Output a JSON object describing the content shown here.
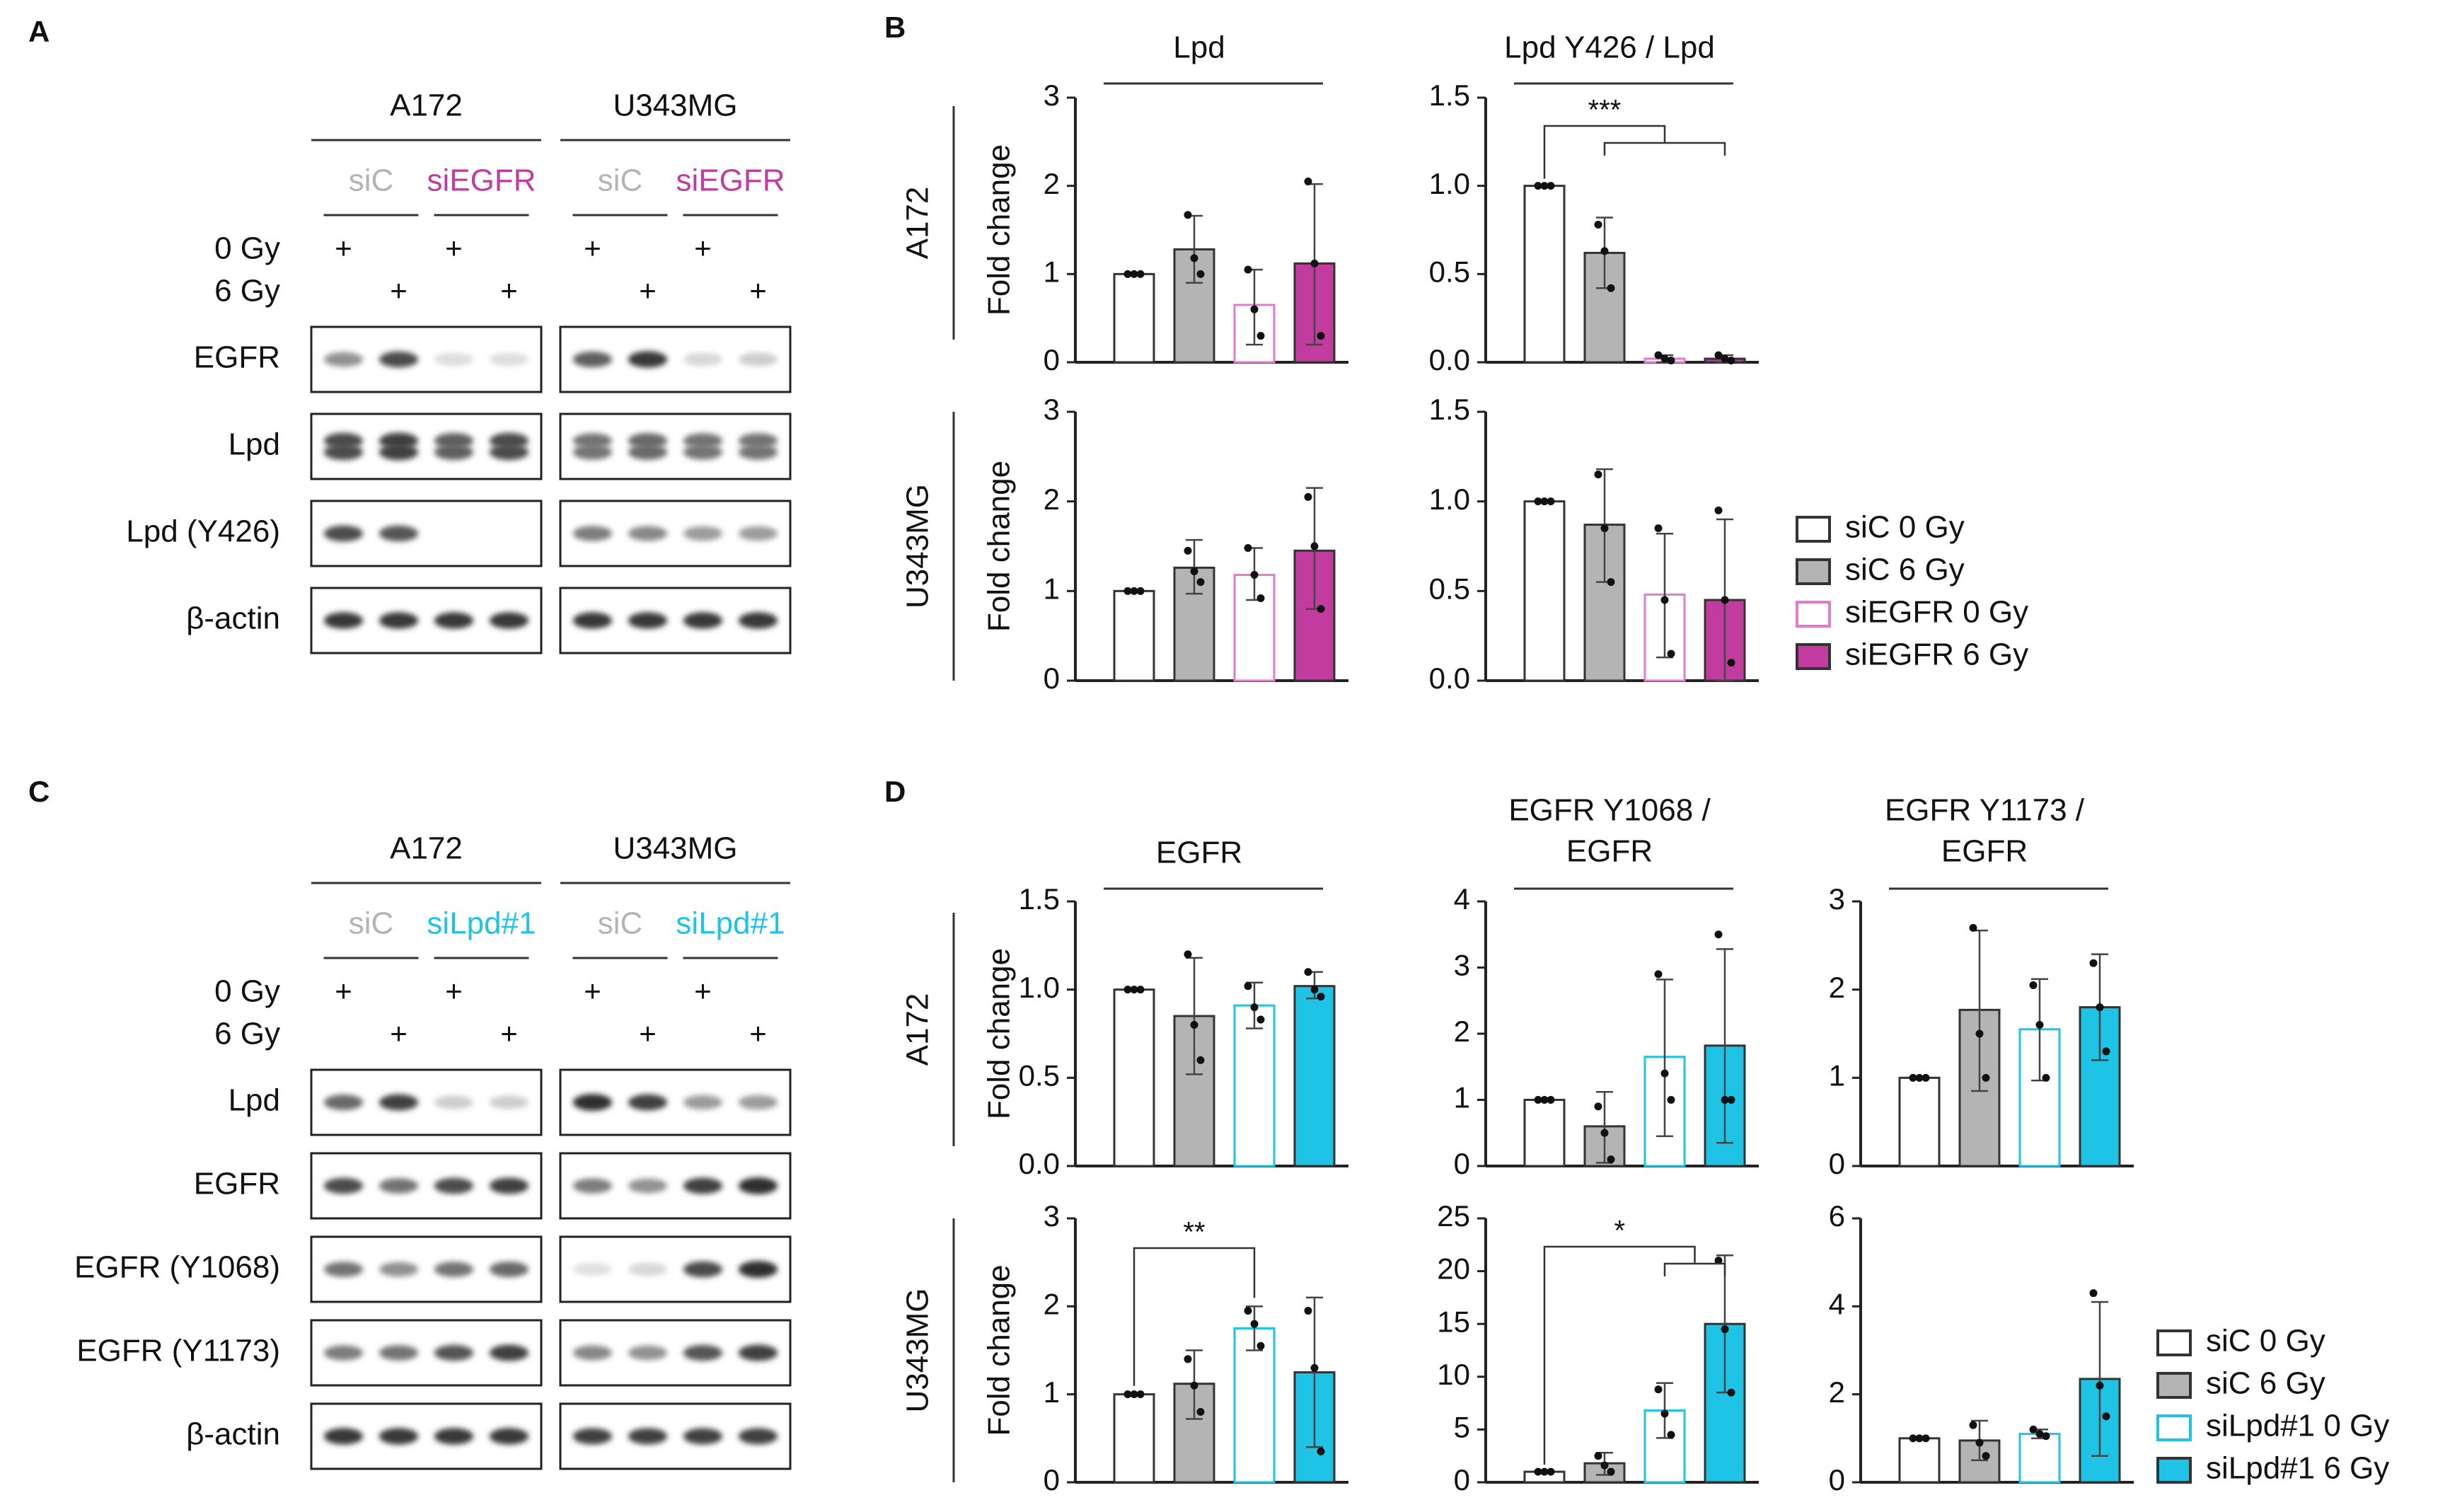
{
  "panels": {
    "A": {
      "letter": "A",
      "cell_lines": [
        "A172",
        "U343MG"
      ],
      "groups": [
        {
          "label": "siC",
          "color": "#b4b4b4"
        },
        {
          "label": "siEGFR",
          "color": "#c23ca0"
        }
      ],
      "dose_labels": [
        "0 Gy",
        "6 Gy"
      ],
      "plus": "+",
      "rows": [
        {
          "label": "EGFR",
          "A172": [
            0.45,
            0.8,
            0.07,
            0.07
          ],
          "U343MG": [
            0.7,
            0.9,
            0.1,
            0.15
          ]
        },
        {
          "label": "Lpd",
          "A172": [
            0.8,
            0.85,
            0.7,
            0.8
          ],
          "U343MG": [
            0.6,
            0.65,
            0.6,
            0.6
          ],
          "double": true
        },
        {
          "label": "Lpd (Y426)",
          "A172": [
            0.8,
            0.75,
            0.0,
            0.0
          ],
          "U343MG": [
            0.55,
            0.5,
            0.4,
            0.4
          ]
        },
        {
          "label": "β-actin",
          "A172": [
            0.9,
            0.9,
            0.9,
            0.9
          ],
          "U343MG": [
            0.9,
            0.9,
            0.9,
            0.9
          ]
        }
      ]
    },
    "C": {
      "letter": "C",
      "cell_lines": [
        "A172",
        "U343MG"
      ],
      "groups": [
        {
          "label": "siC",
          "color": "#b4b4b4"
        },
        {
          "label": "siLpd#1",
          "color": "#1ec3e6"
        }
      ],
      "dose_labels": [
        "0 Gy",
        "6 Gy"
      ],
      "plus": "+",
      "rows": [
        {
          "label": "Lpd",
          "A172": [
            0.65,
            0.85,
            0.15,
            0.15
          ],
          "U343MG": [
            0.95,
            0.85,
            0.4,
            0.4
          ]
        },
        {
          "label": "EGFR",
          "A172": [
            0.8,
            0.6,
            0.8,
            0.85
          ],
          "U343MG": [
            0.55,
            0.45,
            0.85,
            0.95
          ]
        },
        {
          "label": "EGFR (Y1068)",
          "A172": [
            0.6,
            0.45,
            0.6,
            0.65
          ],
          "U343MG": [
            0.05,
            0.1,
            0.8,
            0.95
          ]
        },
        {
          "label": "EGFR (Y1173)",
          "A172": [
            0.55,
            0.6,
            0.75,
            0.85
          ],
          "U343MG": [
            0.5,
            0.45,
            0.75,
            0.85
          ]
        },
        {
          "label": "β-actin",
          "A172": [
            0.9,
            0.9,
            0.9,
            0.9
          ],
          "U343MG": [
            0.85,
            0.85,
            0.85,
            0.85
          ]
        }
      ]
    },
    "B": {
      "letter": "B"
    },
    "D": {
      "letter": "D"
    }
  },
  "legends": {
    "B": [
      {
        "label": "siC 0 Gy",
        "fill": "#ffffff",
        "stroke": "#333333"
      },
      {
        "label": "siC 6 Gy",
        "fill": "#b4b4b4",
        "stroke": "#333333"
      },
      {
        "label": "siEGFR 0 Gy",
        "fill": "#ffffff",
        "stroke": "#e07cc8"
      },
      {
        "label": "siEGFR 6 Gy",
        "fill": "#c23ca0",
        "stroke": "#333333"
      }
    ],
    "D": [
      {
        "label": "siC 0 Gy",
        "fill": "#ffffff",
        "stroke": "#333333"
      },
      {
        "label": "siC 6 Gy",
        "fill": "#b4b4b4",
        "stroke": "#333333"
      },
      {
        "label": "siLpd#1 0 Gy",
        "fill": "#ffffff",
        "stroke": "#1ec3e6"
      },
      {
        "label": "siLpd#1 6 Gy",
        "fill": "#1ec3e6",
        "stroke": "#333333"
      }
    ]
  },
  "chart_data": [
    {
      "id": "B-A172-Lpd",
      "type": "bar",
      "title": "Lpd",
      "row_label": "A172",
      "ylabel": "Fold change",
      "ylim": [
        0,
        3
      ],
      "yticks": [
        "0",
        "1",
        "2",
        "3"
      ],
      "scheme": "EGFR",
      "series": [
        {
          "name": "siC 0 Gy",
          "value": 1.0,
          "err": [
            1.0,
            1.0
          ],
          "points": [
            1.0,
            1.0,
            1.0
          ]
        },
        {
          "name": "siC 6 Gy",
          "value": 1.28,
          "err": [
            0.9,
            1.66
          ],
          "points": [
            1.67,
            1.18,
            1.0
          ]
        },
        {
          "name": "siEGFR 0 Gy",
          "value": 0.65,
          "err": [
            0.2,
            1.05
          ],
          "points": [
            1.05,
            0.6,
            0.3
          ]
        },
        {
          "name": "siEGFR 6 Gy",
          "value": 1.12,
          "err": [
            0.2,
            2.02
          ],
          "points": [
            2.05,
            1.12,
            0.3
          ]
        }
      ]
    },
    {
      "id": "B-A172-LpdY426",
      "type": "bar",
      "title": "Lpd Y426 / Lpd",
      "row_label": "A172",
      "ylabel": "",
      "ylim": [
        0,
        1.5
      ],
      "yticks": [
        "0.0",
        "0.5",
        "1.0",
        "1.5"
      ],
      "scheme": "EGFR",
      "significance": [
        {
          "label": "***",
          "from": 0,
          "to": [
            1,
            3
          ]
        }
      ],
      "series": [
        {
          "name": "siC 0 Gy",
          "value": 1.0,
          "err": [
            1.0,
            1.0
          ],
          "points": [
            1.0,
            1.0,
            1.0
          ]
        },
        {
          "name": "siC 6 Gy",
          "value": 0.62,
          "err": [
            0.42,
            0.82
          ],
          "points": [
            0.78,
            0.63,
            0.42
          ]
        },
        {
          "name": "siEGFR 0 Gy",
          "value": 0.02,
          "err": [
            0.0,
            0.04
          ],
          "points": [
            0.04,
            0.02,
            0.01
          ]
        },
        {
          "name": "siEGFR 6 Gy",
          "value": 0.02,
          "err": [
            0.0,
            0.04
          ],
          "points": [
            0.04,
            0.02,
            0.01
          ]
        }
      ]
    },
    {
      "id": "B-U343MG-Lpd",
      "type": "bar",
      "title": "",
      "row_label": "U343MG",
      "ylabel": "Fold change",
      "ylim": [
        0,
        3
      ],
      "yticks": [
        "0",
        "1",
        "2",
        "3"
      ],
      "scheme": "EGFR",
      "series": [
        {
          "name": "siC 0 Gy",
          "value": 1.0,
          "err": [
            1.0,
            1.0
          ],
          "points": [
            1.0,
            1.0,
            1.0
          ]
        },
        {
          "name": "siC 6 Gy",
          "value": 1.26,
          "err": [
            0.97,
            1.57
          ],
          "points": [
            1.45,
            1.22,
            1.1
          ]
        },
        {
          "name": "siEGFR 0 Gy",
          "value": 1.18,
          "err": [
            0.9,
            1.48
          ],
          "points": [
            1.48,
            1.18,
            0.92
          ]
        },
        {
          "name": "siEGFR 6 Gy",
          "value": 1.45,
          "err": [
            0.8,
            2.15
          ],
          "points": [
            2.05,
            1.5,
            0.8
          ]
        }
      ]
    },
    {
      "id": "B-U343MG-LpdY426",
      "type": "bar",
      "title": "",
      "row_label": "U343MG",
      "ylabel": "",
      "ylim": [
        0,
        1.5
      ],
      "yticks": [
        "0.0",
        "0.5",
        "1.0",
        "1.5"
      ],
      "scheme": "EGFR",
      "series": [
        {
          "name": "siC 0 Gy",
          "value": 1.0,
          "err": [
            1.0,
            1.0
          ],
          "points": [
            1.0,
            1.0,
            1.0
          ]
        },
        {
          "name": "siC 6 Gy",
          "value": 0.87,
          "err": [
            0.55,
            1.18
          ],
          "points": [
            1.15,
            0.85,
            0.55
          ]
        },
        {
          "name": "siEGFR 0 Gy",
          "value": 0.48,
          "err": [
            0.13,
            0.82
          ],
          "points": [
            0.85,
            0.45,
            0.15
          ]
        },
        {
          "name": "siEGFR 6 Gy",
          "value": 0.45,
          "err": [
            0.0,
            0.9
          ],
          "points": [
            0.95,
            0.45,
            0.1
          ]
        }
      ]
    },
    {
      "id": "D-A172-EGFR",
      "type": "bar",
      "title": "EGFR",
      "row_label": "A172",
      "ylabel": "Fold change",
      "ylim": [
        0,
        1.5
      ],
      "yticks": [
        "0.0",
        "0.5",
        "1.0",
        "1.5"
      ],
      "scheme": "Lpd",
      "series": [
        {
          "name": "siC 0 Gy",
          "value": 1.0,
          "err": [
            1.0,
            1.0
          ],
          "points": [
            1.0,
            1.0,
            1.0
          ]
        },
        {
          "name": "siC 6 Gy",
          "value": 0.85,
          "err": [
            0.52,
            1.18
          ],
          "points": [
            1.2,
            0.8,
            0.6
          ]
        },
        {
          "name": "siLpd#1 0 Gy",
          "value": 0.91,
          "err": [
            0.78,
            1.04
          ],
          "points": [
            1.02,
            0.9,
            0.83
          ]
        },
        {
          "name": "siLpd#1 6 Gy",
          "value": 1.02,
          "err": [
            0.95,
            1.1
          ],
          "points": [
            1.1,
            1.0,
            0.96
          ]
        }
      ]
    },
    {
      "id": "D-A172-EGFRY1068",
      "type": "bar",
      "title": "EGFR Y1068 / EGFR",
      "row_label": "A172",
      "ylabel": "",
      "ylim": [
        0,
        4
      ],
      "yticks": [
        "0",
        "1",
        "2",
        "3",
        "4"
      ],
      "scheme": "Lpd",
      "series": [
        {
          "name": "siC 0 Gy",
          "value": 1.0,
          "err": [
            1.0,
            1.0
          ],
          "points": [
            1.0,
            1.0,
            1.0
          ]
        },
        {
          "name": "siC 6 Gy",
          "value": 0.6,
          "err": [
            0.05,
            1.12
          ],
          "points": [
            0.9,
            0.5,
            0.1
          ]
        },
        {
          "name": "siLpd#1 0 Gy",
          "value": 1.65,
          "err": [
            0.45,
            2.82
          ],
          "points": [
            2.9,
            1.4,
            1.0
          ]
        },
        {
          "name": "siLpd#1 6 Gy",
          "value": 1.82,
          "err": [
            0.35,
            3.28
          ],
          "points": [
            3.5,
            1.0,
            1.0
          ]
        }
      ]
    },
    {
      "id": "D-A172-EGFRY1173",
      "type": "bar",
      "title": "EGFR Y1173 / EGFR",
      "row_label": "A172",
      "ylabel": "",
      "ylim": [
        0,
        3
      ],
      "yticks": [
        "0",
        "1",
        "2",
        "3"
      ],
      "scheme": "Lpd",
      "series": [
        {
          "name": "siC 0 Gy",
          "value": 1.0,
          "err": [
            1.0,
            1.0
          ],
          "points": [
            1.0,
            1.0,
            1.0
          ]
        },
        {
          "name": "siC 6 Gy",
          "value": 1.77,
          "err": [
            0.85,
            2.67
          ],
          "points": [
            2.7,
            1.5,
            1.0
          ]
        },
        {
          "name": "siLpd#1 0 Gy",
          "value": 1.55,
          "err": [
            0.97,
            2.12
          ],
          "points": [
            2.05,
            1.6,
            1.0
          ]
        },
        {
          "name": "siLpd#1 6 Gy",
          "value": 1.8,
          "err": [
            1.2,
            2.4
          ],
          "points": [
            2.3,
            1.8,
            1.3
          ]
        }
      ]
    },
    {
      "id": "D-U343MG-EGFR",
      "type": "bar",
      "title": "",
      "row_label": "U343MG",
      "ylabel": "Fold change",
      "ylim": [
        0,
        3
      ],
      "yticks": [
        "0",
        "1",
        "2",
        "3"
      ],
      "scheme": "Lpd",
      "significance": [
        {
          "label": "**",
          "from": 0,
          "to": [
            2
          ]
        }
      ],
      "series": [
        {
          "name": "siC 0 Gy",
          "value": 1.0,
          "err": [
            1.0,
            1.0
          ],
          "points": [
            1.0,
            1.0,
            1.0
          ]
        },
        {
          "name": "siC 6 Gy",
          "value": 1.12,
          "err": [
            0.72,
            1.5
          ],
          "points": [
            1.4,
            1.1,
            0.8
          ]
        },
        {
          "name": "siLpd#1 0 Gy",
          "value": 1.75,
          "err": [
            1.5,
            2.0
          ],
          "points": [
            1.95,
            1.8,
            1.55
          ]
        },
        {
          "name": "siLpd#1 6 Gy",
          "value": 1.25,
          "err": [
            0.4,
            2.1
          ],
          "points": [
            1.95,
            1.3,
            0.35
          ]
        }
      ]
    },
    {
      "id": "D-U343MG-EGFRY1068",
      "type": "bar",
      "title": "",
      "row_label": "U343MG",
      "ylabel": "",
      "ylim": [
        0,
        25
      ],
      "yticks": [
        "0",
        "5",
        "10",
        "15",
        "20",
        "25"
      ],
      "scheme": "Lpd",
      "significance": [
        {
          "label": "*",
          "from": 0,
          "to": [
            2,
            3
          ]
        }
      ],
      "series": [
        {
          "name": "siC 0 Gy",
          "value": 1.0,
          "err": [
            1.0,
            1.0
          ],
          "points": [
            1.0,
            1.0,
            1.0
          ]
        },
        {
          "name": "siC 6 Gy",
          "value": 1.8,
          "err": [
            0.7,
            2.8
          ],
          "points": [
            2.5,
            1.6,
            1.0
          ]
        },
        {
          "name": "siLpd#1 0 Gy",
          "value": 6.8,
          "err": [
            4.2,
            9.4
          ],
          "points": [
            8.8,
            6.5,
            4.5
          ]
        },
        {
          "name": "siLpd#1 6 Gy",
          "value": 15.0,
          "err": [
            8.5,
            21.5
          ],
          "points": [
            21.0,
            14.5,
            8.5
          ]
        }
      ]
    },
    {
      "id": "D-U343MG-EGFRY1173",
      "type": "bar",
      "title": "",
      "row_label": "U343MG",
      "ylabel": "",
      "ylim": [
        0,
        6
      ],
      "yticks": [
        "0",
        "2",
        "4",
        "6"
      ],
      "scheme": "Lpd",
      "series": [
        {
          "name": "siC 0 Gy",
          "value": 1.0,
          "err": [
            1.0,
            1.0
          ],
          "points": [
            1.0,
            1.0,
            1.0
          ]
        },
        {
          "name": "siC 6 Gy",
          "value": 0.95,
          "err": [
            0.5,
            1.4
          ],
          "points": [
            1.3,
            0.9,
            0.6
          ]
        },
        {
          "name": "siLpd#1 0 Gy",
          "value": 1.1,
          "err": [
            1.0,
            1.2
          ],
          "points": [
            1.2,
            1.1,
            1.05
          ]
        },
        {
          "name": "siLpd#1 6 Gy",
          "value": 2.35,
          "err": [
            0.6,
            4.1
          ],
          "points": [
            4.3,
            2.2,
            1.5
          ]
        }
      ]
    }
  ]
}
